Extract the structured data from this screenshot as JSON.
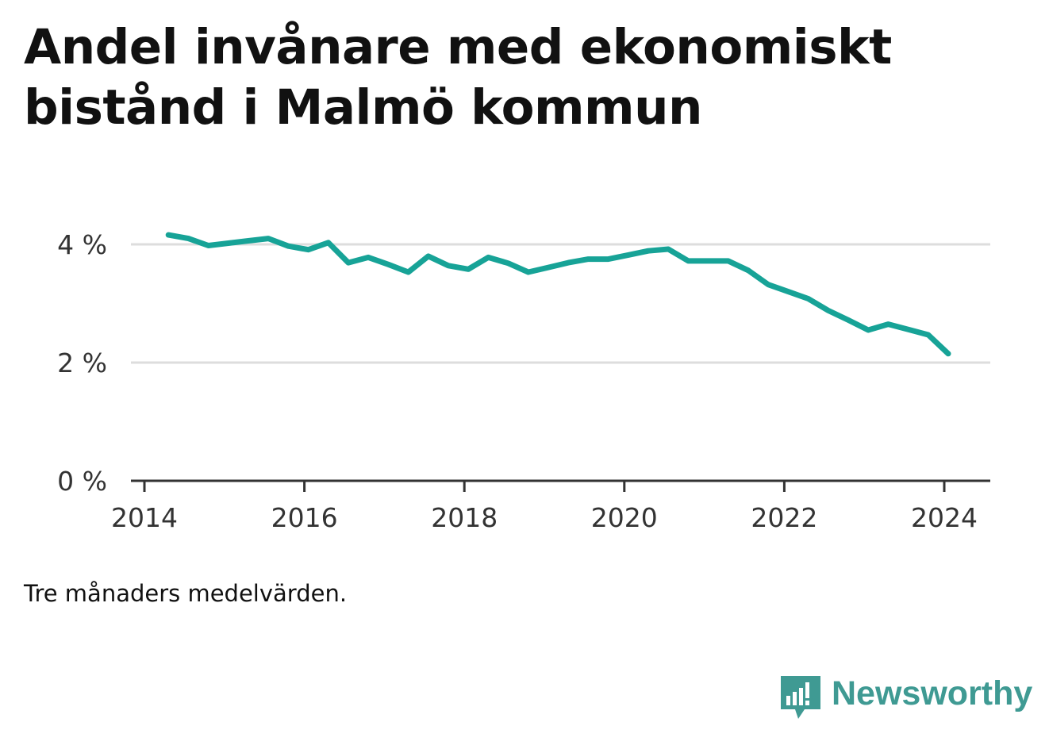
{
  "title": "Andel invånare med ekonomiskt bistånd i Malmö kommun",
  "note": "Tre månaders medelvärden.",
  "brand": {
    "name": "Newsworthy",
    "color": "#3f9a93"
  },
  "colors": {
    "line": "#17a397",
    "grid": "#dddddd",
    "axis": "#333333"
  },
  "chart_data": {
    "type": "line",
    "title": "Andel invånare med ekonomiskt bistånd i Malmö kommun",
    "xlabel": "",
    "ylabel": "",
    "xlim": [
      2014,
      2024.6
    ],
    "ylim": [
      0,
      4
    ],
    "grid": true,
    "xticks": [
      {
        "value": 2014,
        "label": "2014"
      },
      {
        "value": 2016,
        "label": "2016"
      },
      {
        "value": 2018,
        "label": "2018"
      },
      {
        "value": 2020,
        "label": "2020"
      },
      {
        "value": 2022,
        "label": "2022"
      },
      {
        "value": 2024,
        "label": "2024"
      }
    ],
    "yticks": [
      {
        "value": 0,
        "label": "0 %"
      },
      {
        "value": 2,
        "label": "2 %"
      },
      {
        "value": 4,
        "label": "4 %"
      }
    ],
    "series": [
      {
        "x": [
          2014.3,
          2014.55,
          2014.8,
          2015.05,
          2015.3,
          2015.55,
          2015.8,
          2016.05,
          2016.3,
          2016.55,
          2016.8,
          2017.05,
          2017.3,
          2017.55,
          2017.8,
          2018.05,
          2018.3,
          2018.55,
          2018.8,
          2019.05,
          2019.3,
          2019.55,
          2019.8,
          2020.05,
          2020.3,
          2020.55,
          2020.8,
          2021.05,
          2021.3,
          2021.55,
          2021.8,
          2022.05,
          2022.3,
          2022.55,
          2022.8,
          2023.05,
          2023.3,
          2023.55,
          2023.8,
          2024.05
        ],
        "y": [
          4.16,
          4.1,
          3.98,
          4.02,
          4.06,
          4.1,
          3.97,
          3.91,
          4.03,
          3.69,
          3.78,
          3.66,
          3.53,
          3.8,
          3.64,
          3.58,
          3.78,
          3.68,
          3.53,
          3.61,
          3.69,
          3.75,
          3.75,
          3.82,
          3.89,
          3.92,
          3.72,
          3.72,
          3.72,
          3.56,
          3.32,
          3.2,
          3.08,
          2.88,
          2.72,
          2.55,
          2.65,
          2.56,
          2.47,
          2.15
        ]
      }
    ]
  }
}
